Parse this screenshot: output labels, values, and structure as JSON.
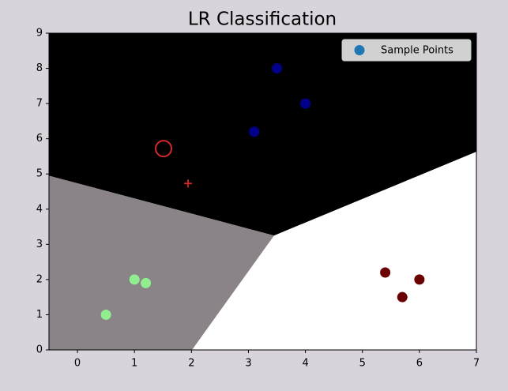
{
  "chart_data": {
    "type": "scatter",
    "title": "LR Classification",
    "xlim": [
      -0.5,
      7
    ],
    "xticks": [
      0,
      1,
      2,
      3,
      4,
      5,
      6,
      7
    ],
    "ylim": [
      0,
      9
    ],
    "yticks": [
      0,
      1,
      2,
      3,
      4,
      5,
      6,
      7,
      8,
      9
    ],
    "legend": "upper right",
    "regions": [
      {
        "color": "#000000",
        "points": [
          [
            -0.5,
            9
          ],
          [
            7,
            9
          ],
          [
            7,
            5.63
          ],
          [
            3.45,
            3.25
          ],
          [
            -0.5,
            4.95
          ]
        ]
      },
      {
        "color": "#8a8387",
        "points": [
          [
            -0.5,
            4.95
          ],
          [
            3.45,
            3.25
          ],
          [
            2.01,
            0
          ],
          [
            -0.5,
            0
          ]
        ]
      },
      {
        "color": "#ffffff",
        "points": [
          [
            3.45,
            3.25
          ],
          [
            7,
            5.63
          ],
          [
            7,
            0
          ],
          [
            2.01,
            0
          ]
        ]
      }
    ],
    "series": [
      {
        "name": "Sample Points",
        "color": "#1f77b4",
        "x": [
          3.5,
          4,
          3.1,
          1,
          1.2,
          0.5,
          5.4,
          6,
          5.7
        ],
        "values": [
          8,
          7,
          6.2,
          2,
          1.9,
          1,
          2.2,
          2,
          1.5
        ],
        "colors": [
          "#00008b",
          "#00008b",
          "#00008b",
          "#90ee90",
          "#90ee90",
          "#90ee90",
          "#6b0000",
          "#6b0000",
          "#6b0000"
        ]
      }
    ],
    "markers": [
      {
        "x": 1.51,
        "y": 5.72,
        "marker": "circle-open",
        "color": "#d62728"
      },
      {
        "x": 1.94,
        "y": 4.73,
        "marker": "plus",
        "color": "#d62728"
      }
    ]
  }
}
